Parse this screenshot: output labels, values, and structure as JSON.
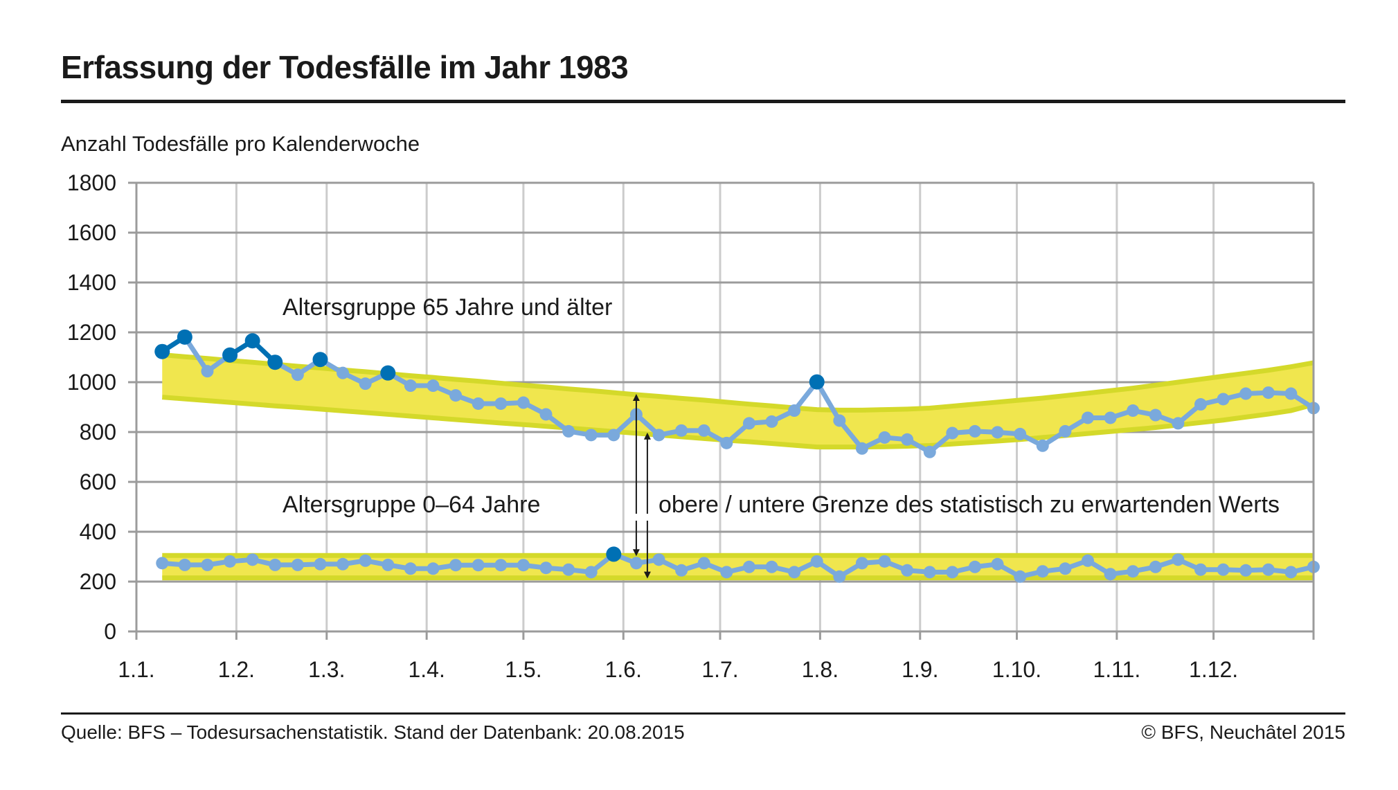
{
  "title": "Erfassung der Todesfälle im Jahr 1983",
  "subtitle": "Anzahl Todesfälle pro Kalenderwoche",
  "footer": {
    "source": "Quelle: BFS – Todesursachenstatistik. Stand der Datenbank: 20.08.2015",
    "copyright": "© BFS, Neuchâtel 2015"
  },
  "colors": {
    "normal_point": "#7aa9dc",
    "exceeding_point": "#0070b4",
    "band_fill": "#f0e64e",
    "band_edge": "#d4d92a",
    "grid_major": "#9b9b9b",
    "grid_minor": "#cccccc"
  },
  "chart_data": {
    "type": "line",
    "x_unit": "Kalenderwoche",
    "x": [
      1,
      2,
      3,
      4,
      5,
      6,
      7,
      8,
      9,
      10,
      11,
      12,
      13,
      14,
      15,
      16,
      17,
      18,
      19,
      20,
      21,
      22,
      23,
      24,
      25,
      26,
      27,
      28,
      29,
      30,
      31,
      32,
      33,
      34,
      35,
      36,
      37,
      38,
      39,
      40,
      41,
      42,
      43,
      44,
      45,
      46,
      47,
      48,
      49,
      50,
      51,
      52
    ],
    "x_tick_labels": [
      "1.1.",
      "1.2.",
      "1.3.",
      "1.4.",
      "1.5.",
      "1.6.",
      "1.7.",
      "1.8.",
      "1.9.",
      "1.10.",
      "1.11.",
      "1.12."
    ],
    "y_ticks": [
      0,
      200,
      400,
      600,
      800,
      1000,
      1200,
      1400,
      1600,
      1800
    ],
    "ylim": [
      0,
      1800
    ],
    "grid": true,
    "series": [
      {
        "name": "Altersgruppe 65 Jahre und älter",
        "values": [
          1123,
          1181,
          1044,
          1109,
          1166,
          1080,
          1030,
          1091,
          1037,
          994,
          1037,
          986,
          986,
          947,
          914,
          914,
          918,
          871,
          803,
          788,
          788,
          871,
          788,
          806,
          806,
          756,
          835,
          842,
          886,
          1001,
          846,
          734,
          778,
          770,
          720,
          796,
          803,
          799,
          792,
          745,
          803,
          857,
          857,
          886,
          868,
          835,
          911,
          932,
          954,
          958,
          954,
          896
        ],
        "band_upper": [
          1110,
          1102,
          1095,
          1087,
          1080,
          1072,
          1064,
          1057,
          1049,
          1042,
          1034,
          1026,
          1019,
          1011,
          1004,
          996,
          988,
          981,
          973,
          966,
          958,
          950,
          943,
          935,
          928,
          920,
          912,
          905,
          897,
          890,
          888,
          888,
          890,
          892,
          896,
          904,
          912,
          920,
          928,
          936,
          946,
          956,
          966,
          976,
          988,
          1000,
          1012,
          1024,
          1036,
          1048,
          1062,
          1078
        ],
        "band_lower": [
          940,
          933,
          926,
          919,
          912,
          905,
          899,
          892,
          885,
          878,
          871,
          864,
          857,
          850,
          843,
          836,
          830,
          823,
          816,
          809,
          802,
          795,
          788,
          781,
          774,
          767,
          761,
          754,
          747,
          740,
          740,
          740,
          741,
          743,
          746,
          752,
          758,
          764,
          770,
          778,
          786,
          794,
          802,
          810,
          818,
          828,
          838,
          848,
          860,
          872,
          886,
          910
        ],
        "highlighted_weeks": [
          1,
          2,
          4,
          5,
          6,
          8,
          11,
          30
        ]
      },
      {
        "name": "Altersgruppe 0–64 Jahre",
        "values": [
          274,
          267,
          267,
          281,
          288,
          267,
          267,
          270,
          270,
          284,
          267,
          252,
          252,
          266,
          266,
          266,
          266,
          255,
          248,
          238,
          310,
          274,
          288,
          245,
          274,
          238,
          259,
          259,
          238,
          281,
          220,
          274,
          281,
          245,
          238,
          238,
          259,
          270,
          220,
          241,
          252,
          284,
          230,
          241,
          259,
          288,
          248,
          248,
          245,
          248,
          238,
          259
        ],
        "band_upper": 305,
        "band_lower": 215,
        "highlighted_weeks": [
          21
        ]
      }
    ],
    "annotation": "obere / untere Grenze des statistisch zu erwartenden Werts"
  }
}
